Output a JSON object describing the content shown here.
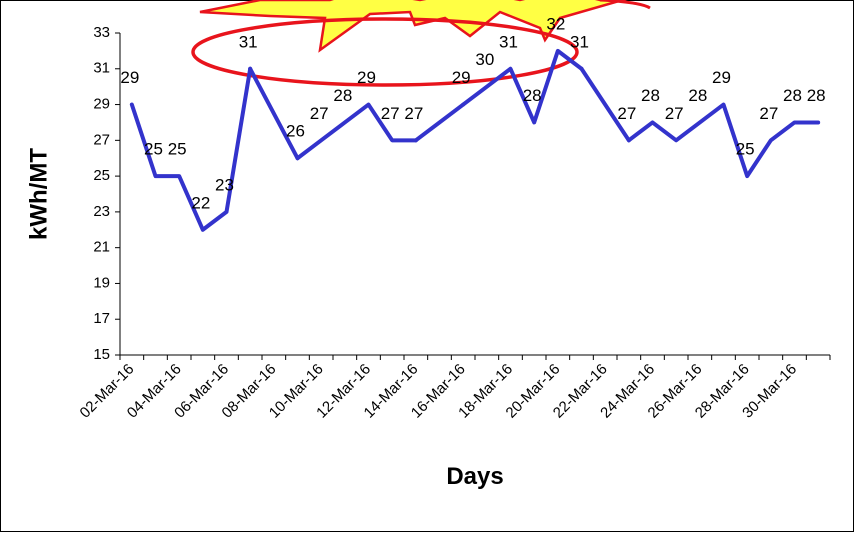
{
  "chart_data": {
    "type": "line",
    "x_label": "Days",
    "y_label": "kWh/MT",
    "categories": [
      "02-Mar-16",
      null,
      "04-Mar-16",
      null,
      "06-Mar-16",
      null,
      "08-Mar-16",
      null,
      "10-Mar-16",
      null,
      "12-Mar-16",
      null,
      "14-Mar-16",
      null,
      "16-Mar-16",
      null,
      "18-Mar-16",
      null,
      "20-Mar-16",
      null,
      "22-Mar-16",
      null,
      "24-Mar-16",
      null,
      "26-Mar-16",
      null,
      "28-Mar-16",
      null,
      "30-Mar-16",
      null
    ],
    "values": [
      29,
      25,
      25,
      22,
      23,
      31,
      null,
      26,
      27,
      28,
      29,
      27,
      27,
      null,
      29,
      30,
      31,
      28,
      32,
      31,
      null,
      27,
      28,
      27,
      28,
      29,
      25,
      27,
      28,
      28
    ],
    "color": "#3333cc",
    "span_gaps": true,
    "ylim": [
      15,
      33
    ],
    "yticks": [
      15,
      17,
      19,
      21,
      23,
      25,
      27,
      29,
      31,
      33
    ]
  }
}
